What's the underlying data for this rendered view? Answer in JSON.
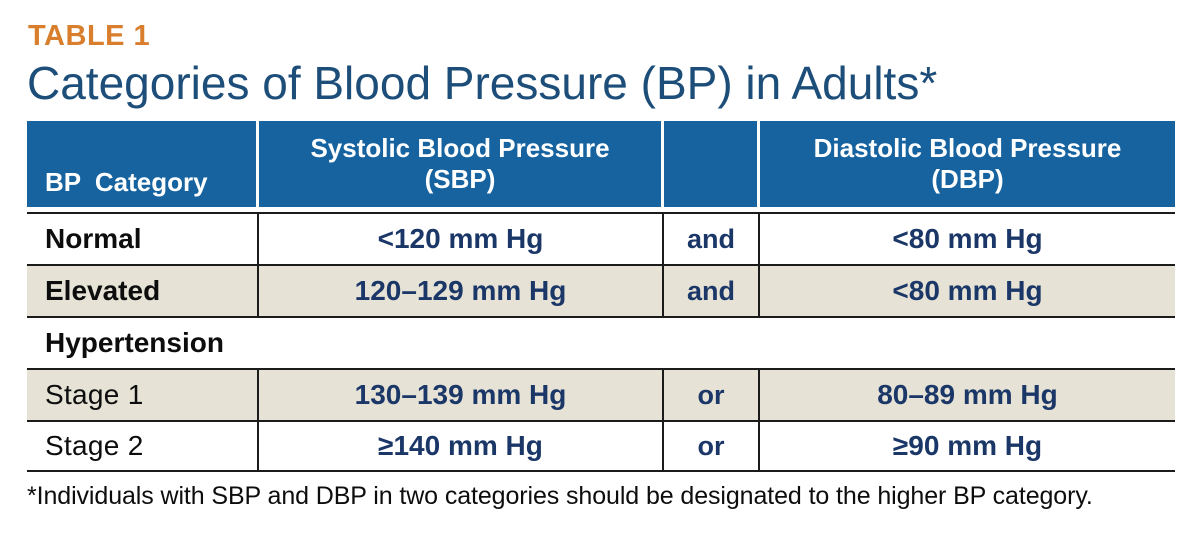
{
  "page": {
    "table_label": "TABLE 1",
    "title": "Categories of Blood Pressure (BP) in Adults*",
    "footnote": "*Individuals with SBP and DBP in two categories should be designated to the higher BP category."
  },
  "table": {
    "headers": {
      "category": "BP Category",
      "sbp_line1": "Systolic Blood Pressure",
      "sbp_line2": "(SBP)",
      "conjunction": "",
      "dbp_line1": "Diastolic Blood Pressure",
      "dbp_line2": "(DBP)"
    },
    "rows": [
      {
        "category": "Normal",
        "sbp": "<120 mm Hg",
        "conj": "and",
        "dbp": "<80 mm Hg"
      },
      {
        "category": "Elevated",
        "sbp": "120–129 mm Hg",
        "conj": "and",
        "dbp": "<80 mm Hg"
      },
      {
        "category": "Hypertension",
        "sbp": "",
        "conj": "",
        "dbp": ""
      },
      {
        "category": "Stage 1",
        "sbp": "130–139 mm Hg",
        "conj": "or",
        "dbp": "80–89 mm Hg"
      },
      {
        "category": "Stage 2",
        "sbp": "≥140 mm Hg",
        "conj": "or",
        "dbp": "≥90 mm Hg"
      }
    ]
  },
  "colors": {
    "header_blue": "#16639f",
    "title_blue": "#1d4e79",
    "label_orange": "#d97e2d",
    "value_navy": "#1b3768",
    "row_beige": "#e6e2d6",
    "border_dark": "#1b1b1b"
  }
}
